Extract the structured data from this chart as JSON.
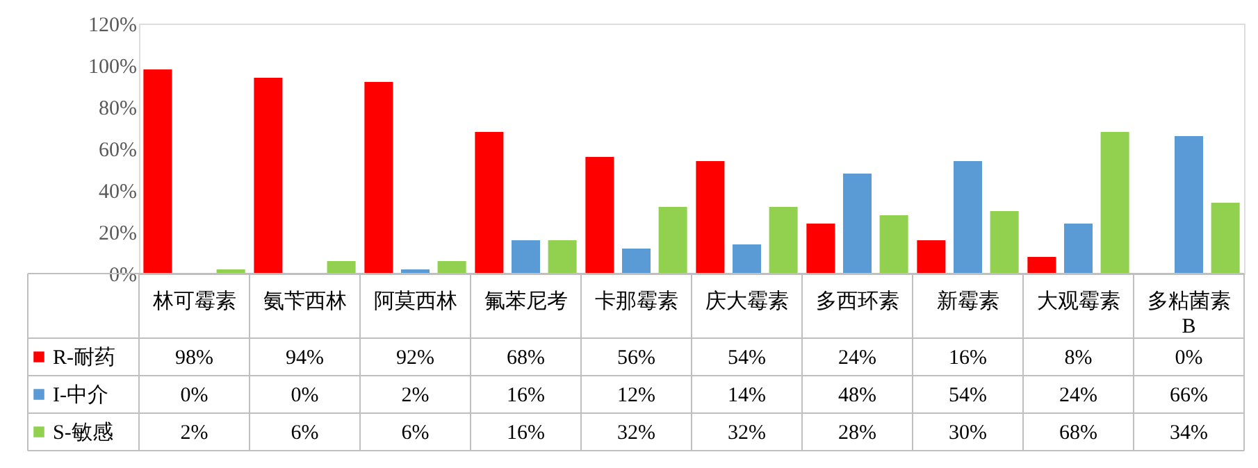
{
  "chart_data": {
    "type": "bar",
    "categories": [
      "林可霉素",
      "氨苄西林",
      "阿莫西林",
      "氟苯尼考",
      "卡那霉素",
      "庆大霉素",
      "多西环素",
      "新霉素",
      "大观霉素",
      "多粘菌素B"
    ],
    "series": [
      {
        "name": "R-耐药",
        "color": "#ff0000",
        "values": [
          98,
          94,
          92,
          68,
          56,
          54,
          24,
          16,
          8,
          0
        ],
        "value_labels": [
          "98%",
          "94%",
          "92%",
          "68%",
          "56%",
          "54%",
          "24%",
          "16%",
          "8%",
          "0%"
        ]
      },
      {
        "name": "I-中介",
        "color": "#5b9bd5",
        "values": [
          0,
          0,
          2,
          16,
          12,
          14,
          48,
          54,
          24,
          66
        ],
        "value_labels": [
          "0%",
          "0%",
          "2%",
          "16%",
          "12%",
          "14%",
          "48%",
          "54%",
          "24%",
          "66%"
        ]
      },
      {
        "name": "S-敏感",
        "color": "#92d050",
        "values": [
          2,
          6,
          6,
          16,
          32,
          32,
          28,
          30,
          68,
          34
        ],
        "value_labels": [
          "2%",
          "6%",
          "6%",
          "16%",
          "32%",
          "32%",
          "28%",
          "30%",
          "68%",
          "34%"
        ]
      }
    ],
    "ylim": [
      0,
      120
    ],
    "yticks": [
      {
        "value": 0,
        "label": "0%"
      },
      {
        "value": 20,
        "label": "20%"
      },
      {
        "value": 40,
        "label": "40%"
      },
      {
        "value": 60,
        "label": "60%"
      },
      {
        "value": 80,
        "label": "80%"
      },
      {
        "value": 100,
        "label": "100%"
      },
      {
        "value": 120,
        "label": "120%"
      }
    ],
    "grid": false,
    "legend": "bottom"
  }
}
